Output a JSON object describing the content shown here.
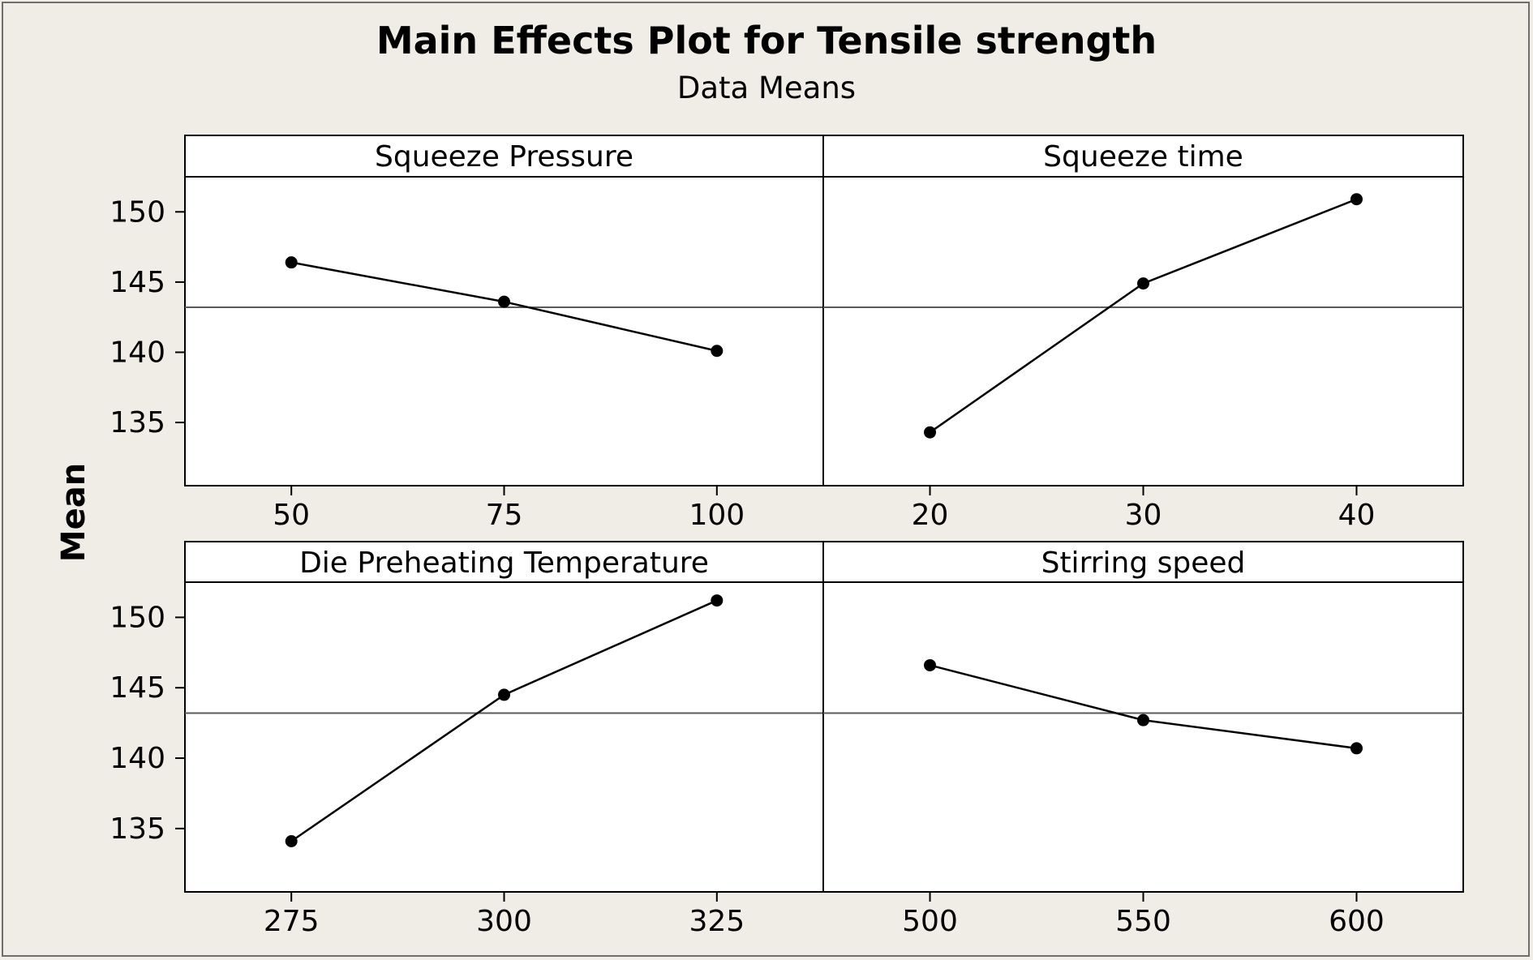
{
  "chart_data": {
    "type": "line",
    "title": "Main Effects Plot for Tensile strength",
    "subtitle": "Data Means",
    "ylabel": "Mean",
    "ylim": [
      130.5,
      152.5
    ],
    "yticks": [
      135,
      140,
      145,
      150
    ],
    "reference_line": 143.2,
    "grid": false,
    "line_color": "#000000",
    "reference_color": "#5a5a5a",
    "panels": [
      {
        "name": "Squeeze Pressure",
        "x": [
          "50",
          "75",
          "100"
        ],
        "values": [
          146.4,
          143.6,
          140.1
        ]
      },
      {
        "name": "Squeeze time",
        "x": [
          "20",
          "30",
          "40"
        ],
        "values": [
          134.3,
          144.9,
          150.9
        ]
      },
      {
        "name": "Die Preheating Temperature",
        "x": [
          "275",
          "300",
          "325"
        ],
        "values": [
          134.1,
          144.5,
          151.2
        ]
      },
      {
        "name": "Stirring speed",
        "x": [
          "500",
          "550",
          "600"
        ],
        "values": [
          146.6,
          142.7,
          140.7
        ]
      }
    ]
  }
}
